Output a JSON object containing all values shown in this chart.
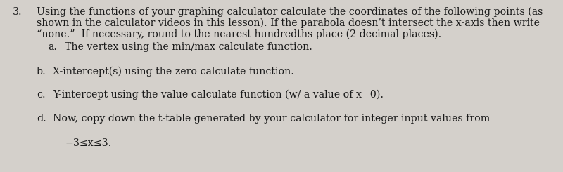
{
  "background_color": "#d4d0cb",
  "number": "3.",
  "main_text_line1": "Using the functions of your graphing calculator calculate the coordinates of the following points (as",
  "main_text_line2": "shown in the calculator videos in this lesson). If the parabola doesn’t intersect the x-axis then write",
  "main_text_line3": "“none.”  If necessary, round to the nearest hundredths place (2 decimal places).",
  "item_a_label": "a.",
  "item_a_text": "The vertex using the min/max calculate function.",
  "item_b_label": "b.",
  "item_b_text": "X-intercept(s) using the zero calculate function.",
  "item_c_label": "c.",
  "item_c_text": "Y-intercept using the value calculate function (w/ a value of x=0).",
  "item_d_label": "d.",
  "item_d_text": "Now, copy down the t-table generated by your calculator for integer input values from",
  "item_d2": "−3≤x≤3.",
  "font_size": 10.2,
  "text_color": "#1a1a1a"
}
